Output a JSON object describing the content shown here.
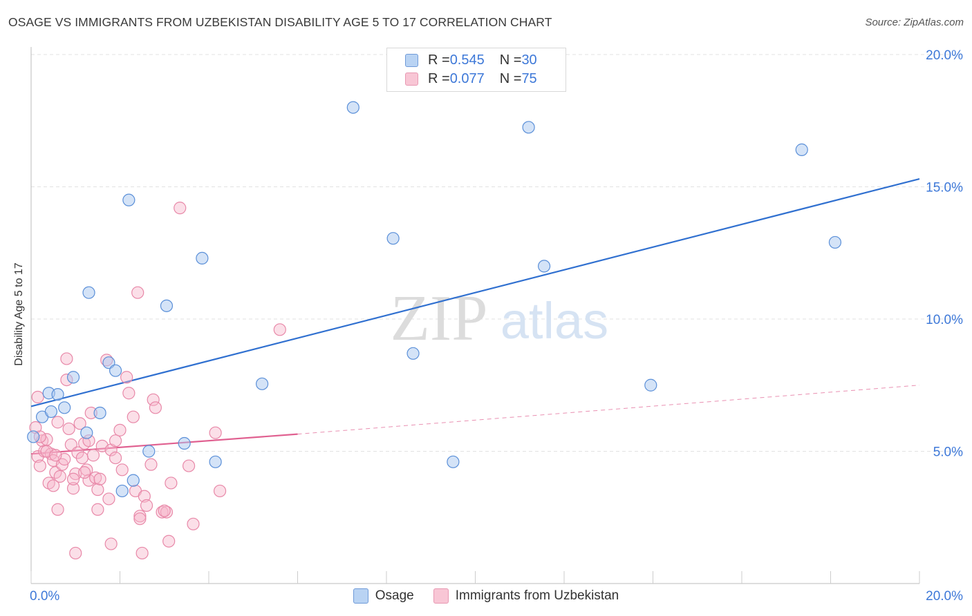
{
  "title": "OSAGE VS IMMIGRANTS FROM UZBEKISTAN DISABILITY AGE 5 TO 17 CORRELATION CHART",
  "source": "Source: ZipAtlas.com",
  "watermark": {
    "zip": "ZIP",
    "atlas": "atlas"
  },
  "legend_top": {
    "rows": [
      {
        "r_label": "R = ",
        "r_value": "0.545",
        "n_label": "N = ",
        "n_value": "30"
      },
      {
        "r_label": "R = ",
        "r_value": "0.077",
        "n_label": "N = ",
        "n_value": "75"
      }
    ]
  },
  "colors": {
    "osage_fill": "#a9c8f0",
    "osage_stroke": "#5a8fd8",
    "osage_line": "#3070d0",
    "uzbek_fill": "#f6b8cb",
    "uzbek_stroke": "#e888a8",
    "uzbek_line": "#e06090",
    "tick_text": "#3d78d8",
    "grid": "#e2e2e2"
  },
  "chart_data": {
    "type": "scatter",
    "title": "OSAGE VS IMMIGRANTS FROM UZBEKISTAN DISABILITY AGE 5 TO 17 CORRELATION CHART",
    "xlabel": "",
    "ylabel": "Disability Age 5 to 17",
    "xlim": [
      0,
      20
    ],
    "ylim": [
      0,
      20
    ],
    "x_tick_labels": [
      "0.0%",
      "20.0%"
    ],
    "y_tick_values": [
      5,
      10,
      15,
      20
    ],
    "y_tick_labels": [
      "5.0%",
      "10.0%",
      "15.0%",
      "20.0%"
    ],
    "series": [
      {
        "name": "Osage",
        "r": 0.545,
        "n": 30,
        "points": [
          [
            0.05,
            5.55
          ],
          [
            0.25,
            6.3
          ],
          [
            0.4,
            7.2
          ],
          [
            0.45,
            6.5
          ],
          [
            0.6,
            7.15
          ],
          [
            0.75,
            6.65
          ],
          [
            0.95,
            7.8
          ],
          [
            1.3,
            11.0
          ],
          [
            1.25,
            5.7
          ],
          [
            1.55,
            6.45
          ],
          [
            1.75,
            8.35
          ],
          [
            1.9,
            8.05
          ],
          [
            2.05,
            3.5
          ],
          [
            2.2,
            14.5
          ],
          [
            2.3,
            3.9
          ],
          [
            2.65,
            5.0
          ],
          [
            3.05,
            10.5
          ],
          [
            3.45,
            5.3
          ],
          [
            3.85,
            12.3
          ],
          [
            4.15,
            4.6
          ],
          [
            5.2,
            7.55
          ],
          [
            7.25,
            18.0
          ],
          [
            8.15,
            13.05
          ],
          [
            8.6,
            8.7
          ],
          [
            9.5,
            4.6
          ],
          [
            11.2,
            17.25
          ],
          [
            11.55,
            12.0
          ],
          [
            13.95,
            7.5
          ],
          [
            17.35,
            16.4
          ],
          [
            18.1,
            12.9
          ]
        ],
        "trend": {
          "x1": 0,
          "y1": 6.7,
          "x2": 20,
          "y2": 15.3
        }
      },
      {
        "name": "Immigrants from Uzbekistan",
        "r": 0.077,
        "n": 75,
        "points": [
          [
            0.1,
            5.9
          ],
          [
            0.15,
            7.05
          ],
          [
            0.15,
            4.8
          ],
          [
            0.2,
            4.45
          ],
          [
            0.25,
            5.4
          ],
          [
            0.3,
            5.0
          ],
          [
            0.35,
            5.45
          ],
          [
            0.4,
            3.8
          ],
          [
            0.45,
            4.9
          ],
          [
            0.5,
            3.7
          ],
          [
            0.5,
            4.65
          ],
          [
            0.55,
            4.2
          ],
          [
            0.6,
            6.1
          ],
          [
            0.65,
            4.05
          ],
          [
            0.7,
            4.5
          ],
          [
            0.75,
            4.7
          ],
          [
            0.8,
            7.7
          ],
          [
            0.8,
            8.5
          ],
          [
            0.85,
            5.85
          ],
          [
            0.9,
            5.25
          ],
          [
            0.95,
            3.6
          ],
          [
            1.0,
            4.15
          ],
          [
            1.05,
            4.95
          ],
          [
            1.1,
            6.05
          ],
          [
            1.15,
            4.75
          ],
          [
            1.2,
            5.3
          ],
          [
            1.25,
            4.3
          ],
          [
            1.3,
            3.9
          ],
          [
            1.3,
            5.4
          ],
          [
            1.35,
            6.45
          ],
          [
            1.4,
            4.85
          ],
          [
            1.45,
            4.0
          ],
          [
            1.5,
            3.55
          ],
          [
            1.5,
            2.8
          ],
          [
            1.55,
            3.95
          ],
          [
            1.6,
            5.2
          ],
          [
            1.7,
            8.45
          ],
          [
            1.75,
            3.2
          ],
          [
            1.8,
            5.05
          ],
          [
            1.8,
            1.5
          ],
          [
            1.9,
            5.4
          ],
          [
            1.9,
            4.75
          ],
          [
            2.0,
            5.8
          ],
          [
            2.05,
            4.3
          ],
          [
            2.15,
            7.8
          ],
          [
            2.2,
            7.2
          ],
          [
            2.3,
            6.3
          ],
          [
            2.35,
            3.5
          ],
          [
            2.4,
            11.0
          ],
          [
            2.45,
            2.55
          ],
          [
            2.5,
            1.15
          ],
          [
            2.55,
            3.3
          ],
          [
            2.6,
            2.95
          ],
          [
            2.7,
            4.5
          ],
          [
            2.75,
            6.95
          ],
          [
            2.8,
            6.65
          ],
          [
            2.95,
            2.7
          ],
          [
            3.05,
            2.7
          ],
          [
            3.1,
            1.6
          ],
          [
            3.15,
            3.8
          ],
          [
            3.35,
            14.2
          ],
          [
            3.55,
            4.45
          ],
          [
            3.65,
            2.25
          ],
          [
            4.15,
            5.7
          ],
          [
            4.25,
            3.5
          ],
          [
            0.2,
            5.55
          ],
          [
            2.45,
            2.45
          ],
          [
            3.0,
            2.75
          ],
          [
            1.0,
            1.15
          ],
          [
            0.95,
            3.95
          ],
          [
            0.6,
            2.8
          ],
          [
            5.6,
            9.6
          ],
          [
            0.35,
            5.0
          ],
          [
            0.55,
            4.85
          ],
          [
            1.2,
            4.2
          ]
        ],
        "trend_solid": {
          "x1": 0,
          "y1": 4.9,
          "x2": 6.0,
          "y2": 5.65
        },
        "trend_dashed": {
          "x1": 6.0,
          "y1": 5.65,
          "x2": 20,
          "y2": 7.5
        }
      }
    ]
  },
  "legend_bottom": [
    {
      "label": "Osage"
    },
    {
      "label": "Immigrants from Uzbekistan"
    }
  ]
}
